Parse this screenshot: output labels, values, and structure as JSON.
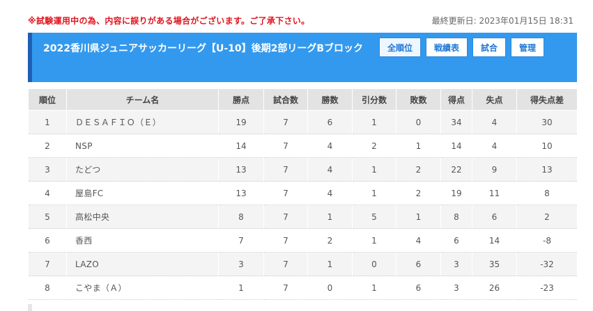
{
  "notice": "※試験運用中の為、内容に誤りがある場合がございます。ご了承下さい。",
  "last_updated": "最終更新日: 2023年01月15日 18:31",
  "header": {
    "title": "2022香川県ジュニアサッカーリーグ【U-10】後期2部リーグBブロック",
    "buttons": [
      "全順位",
      "戦績表",
      "試合",
      "管理"
    ]
  },
  "table": {
    "columns": [
      "順位",
      "チーム名",
      "勝点",
      "試合数",
      "勝数",
      "引分数",
      "敗数",
      "得点",
      "失点",
      "得失点差"
    ],
    "rows": [
      [
        "1",
        "ＤＥＳＡＦＩＯ（Ｅ）",
        "19",
        "7",
        "6",
        "1",
        "0",
        "34",
        "4",
        "30"
      ],
      [
        "2",
        "NSP",
        "14",
        "7",
        "4",
        "2",
        "1",
        "14",
        "4",
        "10"
      ],
      [
        "3",
        "たどつ",
        "13",
        "7",
        "4",
        "1",
        "2",
        "22",
        "9",
        "13"
      ],
      [
        "4",
        "屋島FC",
        "13",
        "7",
        "4",
        "1",
        "2",
        "19",
        "11",
        "8"
      ],
      [
        "5",
        "高松中央",
        "8",
        "7",
        "1",
        "5",
        "1",
        "8",
        "6",
        "2"
      ],
      [
        "6",
        "香西",
        "7",
        "7",
        "2",
        "1",
        "4",
        "6",
        "14",
        "-8"
      ],
      [
        "7",
        "LAZO",
        "3",
        "7",
        "1",
        "0",
        "6",
        "3",
        "35",
        "-32"
      ],
      [
        "8",
        "こやま（Ａ）",
        "1",
        "7",
        "0",
        "1",
        "6",
        "3",
        "26",
        "-23"
      ]
    ]
  },
  "colors": {
    "header_bg": "#3399ee",
    "header_accent": "#1f5fb3",
    "notice_red": "#e0141e",
    "button_text": "#2079d8"
  }
}
